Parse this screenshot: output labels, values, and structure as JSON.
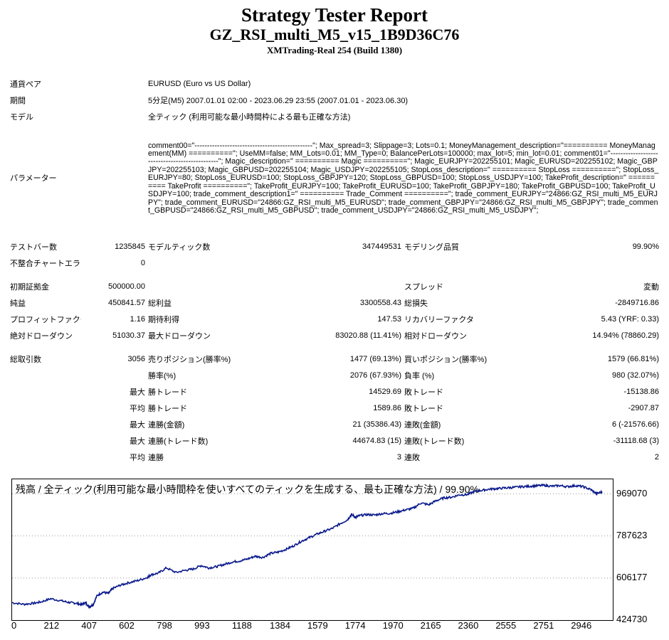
{
  "header": {
    "title": "Strategy Tester Report",
    "ea_name": "GZ_RSI_multi_M5_v15_1B9D36C76",
    "server": "XMTrading-Real 254 (Build 1380)"
  },
  "info": {
    "symbol_label": "通貨ペア",
    "symbol_value": "EURUSD (Euro vs US Dollar)",
    "period_label": "期間",
    "period_value": "5分足(M5) 2007.01.01 02:00 - 2023.06.29 23:55 (2007.01.01 - 2023.06.30)",
    "model_label": "モデル",
    "model_value": "全ティック (利用可能な最小時間枠による最も正確な方法)",
    "params_label": "パラメーター",
    "params_value": "comment00=\"-----------------------------------------------\"; Max_spread=3; Slippage=3; Lots=0.1; MoneyManagement_description=\"========== MoneyManagement(MM) ==========\"; UseMM=false; MM_Lots=0.01; MM_Type=0; BalancePerLots=100000; max_lot=5; min_lot=0.01; comment01=\"-----------------------------------------------\"; Magic_description=\" ========== Magic ==========\"; Magic_EURJPY=202255101; Magic_EURUSD=202255102; Magic_GBPJPY=202255103; Magic_GBPUSD=202255104; Magic_USDJPY=202255105; StopLoss_description=\" ========== StopLoss ==========\"; StopLoss_EURJPY=80; StopLoss_EURUSD=100; StopLoss_GBPJPY=120; StopLoss_GBPUSD=100; StopLoss_USDJPY=100; TakeProfit_description=\" ========== TakeProfit ==========\"; TakeProfit_EURJPY=100; TakeProfit_EURUSD=100; TakeProfit_GBPJPY=180; TakeProfit_GBPUSD=100; TakeProfit_USDJPY=100; trade_comment_description1=\" ========== Trade_Comment ==========\"; trade_comment_EURJPY=\"24866:GZ_RSI_multi_M5_EURJPY\"; trade_comment_EURUSD=\"24866:GZ_RSI_multi_M5_EURUSD\"; trade_comment_GBPJPY=\"24866:GZ_RSI_multi_M5_GBPJPY\"; trade_comment_GBPUSD=\"24866:GZ_RSI_multi_M5_GBPUSD\"; trade_comment_USDJPY=\"24866:GZ_RSI_multi_M5_USDJPY\";"
  },
  "stats": {
    "bars_label": "テストバー数",
    "bars": "1235845",
    "ticks_label": "モデルティック数",
    "ticks": "347449531",
    "quality_label": "モデリング品質",
    "quality": "99.90%",
    "mismatch_label": "不整合チャートエラー",
    "mismatch": "0",
    "deposit_label": "初期証拠金",
    "deposit": "500000.00",
    "spread_label": "スプレッド",
    "spread": "変動",
    "net_label": "純益",
    "net": "450841.57",
    "gross_profit_label": "総利益",
    "gross_profit": "3300558.43",
    "gross_loss_label": "総損失",
    "gross_loss": "-2849716.86",
    "pf_label": "プロフィットファクタ",
    "pf": "1.16",
    "exp_label": "期待利得",
    "exp": "147.53",
    "rf_label": "リカバリーファクタ",
    "rf": "5.43 (YRF: 0.33)",
    "abs_dd_label": "絶対ドローダウン",
    "abs_dd": "51030.37",
    "max_dd_label": "最大ドローダウン",
    "max_dd": "83020.88 (11.41%)",
    "rel_dd_label": "相対ドローダウン",
    "rel_dd": "14.94% (78860.29)",
    "trades_label": "総取引数",
    "trades": "3056",
    "short_label": "売りポジション(勝率%)",
    "short": "1477 (69.13%)",
    "long_label": "買いポジション(勝率%)",
    "long": "1579 (66.81%)",
    "win_pct_label": "勝率(%)",
    "win_pct": "2076 (67.93%)",
    "loss_pct_label": "負率 (%)",
    "loss_pct": "980 (32.07%)",
    "max_word": "最大",
    "avg_word": "平均",
    "largest_win_label": "勝トレード",
    "largest_win": "14529.69",
    "largest_loss_label": "敗トレード",
    "largest_loss": "-15138.86",
    "avg_win_label": "勝トレード",
    "avg_win": "1589.86",
    "avg_loss_label": "敗トレード",
    "avg_loss": "-2907.87",
    "max_cons_win_amt_label": "連勝(金額)",
    "max_cons_win_amt": "21 (35386.43)",
    "max_cons_loss_amt_label": "連敗(金額)",
    "max_cons_loss_amt": "6 (-21576.66)",
    "max_cons_win_cnt_label": "連勝(トレード数)",
    "max_cons_win_cnt": "44674.83 (15)",
    "max_cons_loss_cnt_label": "連敗(トレード数)",
    "max_cons_loss_cnt": "-31118.68 (3)",
    "avg_cons_win_label": "連勝",
    "avg_cons_win": "3",
    "avg_cons_loss_label": "連敗",
    "avg_cons_loss": "2"
  },
  "chart_data": {
    "type": "line",
    "title": "残高 / 全ティック(利用可能な最小時間枠を使いすべてのティックを生成する、最も正確な方法) / 99.90%",
    "xlabel": "",
    "ylabel": "",
    "x_ticks": [
      "0",
      "212",
      "407",
      "602",
      "798",
      "993",
      "1188",
      "1384",
      "1579",
      "1774",
      "1970",
      "2165",
      "2360",
      "2555",
      "2751",
      "2946"
    ],
    "y_ticks": [
      "969070",
      "787623",
      "606177",
      "424730"
    ],
    "ylim": [
      424730,
      1032000
    ],
    "xlim": [
      0,
      3100
    ],
    "color": "#0a1a8c",
    "series": [
      {
        "x": [
          0,
          60,
          110,
          150,
          200,
          260,
          300,
          330,
          360,
          380,
          400,
          420,
          440,
          470,
          500,
          520,
          560,
          600,
          650,
          700,
          720,
          760,
          800,
          850,
          900,
          940,
          980,
          1020,
          1060,
          1100,
          1140,
          1180,
          1220,
          1260,
          1300,
          1340,
          1380,
          1420,
          1460,
          1500,
          1540,
          1580,
          1620,
          1660,
          1700,
          1740,
          1760,
          1780,
          1800,
          1840,
          1880,
          1920,
          1960,
          2000,
          2040,
          2080,
          2120,
          2160,
          2200,
          2240,
          2280,
          2320,
          2360,
          2400,
          2440,
          2480,
          2520,
          2560,
          2600,
          2640,
          2680,
          2720,
          2760,
          2800,
          2840,
          2880,
          2920,
          2960,
          3000,
          3030,
          3060
        ],
        "y": [
          500000,
          493000,
          497000,
          503000,
          517000,
          507000,
          500000,
          498000,
          492000,
          500000,
          482000,
          491000,
          530000,
          545000,
          540000,
          560000,
          575000,
          585000,
          595000,
          608000,
          620000,
          628000,
          650000,
          630000,
          640000,
          645000,
          660000,
          650000,
          655000,
          665000,
          675000,
          680000,
          688000,
          700000,
          695000,
          712000,
          718000,
          730000,
          745000,
          765000,
          780000,
          795000,
          808000,
          820000,
          840000,
          858000,
          880000,
          868000,
          875000,
          880000,
          878000,
          884000,
          885000,
          892000,
          900000,
          907000,
          930000,
          922000,
          940000,
          952000,
          955000,
          965000,
          966000,
          980000,
          985000,
          990000,
          992000,
          995000,
          997000,
          1000000,
          1002000,
          1004000,
          1006000,
          1002000,
          1005000,
          1000000,
          1005000,
          1000000,
          988000,
          970000,
          978000
        ]
      }
    ]
  }
}
